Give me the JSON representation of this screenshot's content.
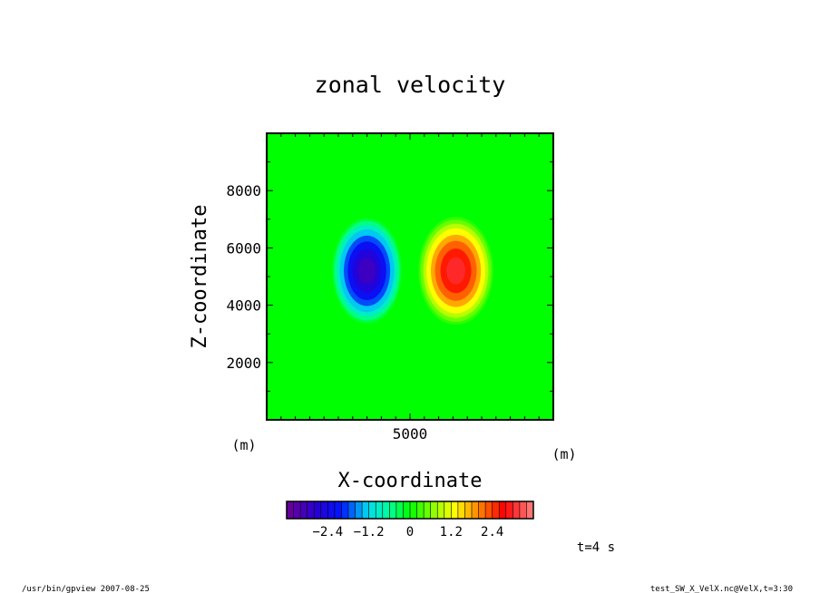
{
  "chart_data": {
    "type": "heatmap",
    "title": "zonal velocity",
    "xlabel": "X-coordinate",
    "ylabel": "Z-coordinate",
    "x_units": "(m)",
    "y_units": "(m)",
    "xlim": [
      0,
      10000
    ],
    "ylim": [
      0,
      10000
    ],
    "x_ticks": [
      5000
    ],
    "x_tick_labels": [
      "5000"
    ],
    "y_ticks": [
      2000,
      4000,
      6000,
      8000
    ],
    "y_tick_labels": [
      "2000",
      "4000",
      "6000",
      "8000"
    ],
    "field": {
      "description_of_values": "zonal velocity",
      "negative_center": {
        "x": 3500,
        "z": 5200,
        "value": -3.0
      },
      "positive_center": {
        "x": 6600,
        "z": 5200,
        "value": 3.0
      }
    },
    "colorbar": {
      "min": -3.6,
      "max": 3.6,
      "step": 0.2,
      "tick_values": [
        -2.4,
        -1.2,
        0,
        1.2,
        2.4
      ],
      "tick_labels": [
        "−2.4",
        "−1.2",
        "0",
        "1.2",
        "2.4"
      ]
    },
    "annotations": {
      "time": "t=4 s",
      "footer_left": "/usr/bin/gpview  2007-08-25",
      "footer_right": "test_SW_X_VelX.nc@VelX,t=3:30"
    },
    "grid": false
  }
}
